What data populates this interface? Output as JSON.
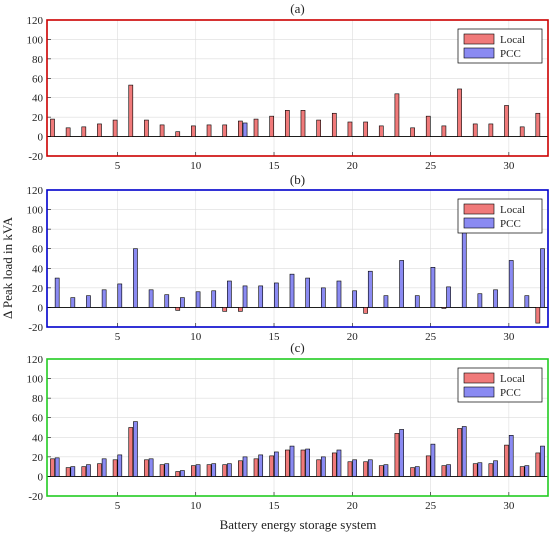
{
  "figure": {
    "ylabel": "Δ Peak load in kVA",
    "xlabel": "Battery energy storage system"
  },
  "colors": {
    "local_fill": "#f07a7a",
    "pcc_fill": "#8a8af2",
    "frame_a": "#cc0000",
    "frame_b": "#0000cc",
    "frame_c": "#22cc22"
  },
  "chart_data": [
    {
      "type": "bar",
      "title": "(a)",
      "x": [
        1,
        2,
        3,
        4,
        5,
        6,
        7,
        8,
        9,
        10,
        11,
        12,
        13,
        14,
        15,
        16,
        17,
        18,
        19,
        20,
        21,
        22,
        23,
        24,
        25,
        26,
        27,
        28,
        29,
        30,
        31,
        32
      ],
      "xlim": [
        0.5,
        32.5
      ],
      "xticks": [
        5,
        10,
        15,
        20,
        25,
        30
      ],
      "ylim": [
        -20,
        120
      ],
      "yticks": [
        -20,
        0,
        20,
        40,
        60,
        80,
        100,
        120
      ],
      "grid": true,
      "legend_position": "top-right",
      "series": [
        {
          "name": "Local",
          "values": [
            18,
            9,
            10,
            13,
            17,
            53,
            17,
            12,
            5,
            11,
            12,
            12,
            16,
            18,
            21,
            27,
            27,
            17,
            24,
            15,
            15,
            11,
            44,
            9,
            21,
            11,
            49,
            13,
            13,
            32,
            10,
            24
          ]
        },
        {
          "name": "PCC",
          "values": [
            0,
            0,
            0,
            0,
            0,
            0,
            0,
            0,
            0,
            0,
            0,
            0,
            14,
            0,
            0,
            0,
            0,
            0,
            0,
            0,
            0,
            0,
            0,
            0,
            0,
            0,
            0,
            0,
            0,
            0,
            0,
            0
          ]
        }
      ]
    },
    {
      "type": "bar",
      "title": "(b)",
      "x": [
        1,
        2,
        3,
        4,
        5,
        6,
        7,
        8,
        9,
        10,
        11,
        12,
        13,
        14,
        15,
        16,
        17,
        18,
        19,
        20,
        21,
        22,
        23,
        24,
        25,
        26,
        27,
        28,
        29,
        30,
        31,
        32
      ],
      "xlim": [
        0.5,
        32.5
      ],
      "xticks": [
        5,
        10,
        15,
        20,
        25,
        30
      ],
      "ylim": [
        -20,
        120
      ],
      "yticks": [
        -20,
        0,
        20,
        40,
        60,
        80,
        100,
        120
      ],
      "grid": true,
      "legend_position": "top-right",
      "series": [
        {
          "name": "Local",
          "values": [
            0,
            0,
            0,
            0,
            0,
            0,
            0,
            0,
            -3,
            0,
            0,
            -4,
            -4,
            0,
            0,
            0,
            0,
            0,
            0,
            0,
            -6,
            0,
            0,
            0,
            0,
            -1,
            0,
            0,
            0,
            0,
            0,
            -16
          ]
        },
        {
          "name": "PCC",
          "values": [
            30,
            10,
            12,
            18,
            24,
            60,
            18,
            13,
            10,
            16,
            17,
            27,
            22,
            22,
            25,
            34,
            30,
            20,
            27,
            17,
            37,
            12,
            48,
            12,
            41,
            21,
            83,
            14,
            18,
            48,
            12,
            60
          ]
        }
      ]
    },
    {
      "type": "bar",
      "title": "(c)",
      "x": [
        1,
        2,
        3,
        4,
        5,
        6,
        7,
        8,
        9,
        10,
        11,
        12,
        13,
        14,
        15,
        16,
        17,
        18,
        19,
        20,
        21,
        22,
        23,
        24,
        25,
        26,
        27,
        28,
        29,
        30,
        31,
        32
      ],
      "xlim": [
        0.5,
        32.5
      ],
      "xticks": [
        5,
        10,
        15,
        20,
        25,
        30
      ],
      "ylim": [
        -20,
        120
      ],
      "yticks": [
        -20,
        0,
        20,
        40,
        60,
        80,
        100,
        120
      ],
      "xlabel": "Battery energy storage system",
      "grid": true,
      "legend_position": "top-right",
      "series": [
        {
          "name": "Local",
          "values": [
            18,
            9,
            10,
            13,
            17,
            50,
            17,
            12,
            5,
            11,
            12,
            12,
            16,
            18,
            21,
            27,
            27,
            17,
            24,
            15,
            15,
            11,
            44,
            9,
            21,
            11,
            49,
            13,
            13,
            32,
            10,
            24
          ]
        },
        {
          "name": "PCC",
          "values": [
            19,
            10,
            12,
            18,
            22,
            56,
            18,
            13,
            6,
            12,
            13,
            13,
            20,
            22,
            25,
            31,
            28,
            20,
            27,
            17,
            17,
            12,
            48,
            10,
            33,
            12,
            51,
            14,
            16,
            42,
            11,
            31
          ]
        }
      ]
    }
  ]
}
